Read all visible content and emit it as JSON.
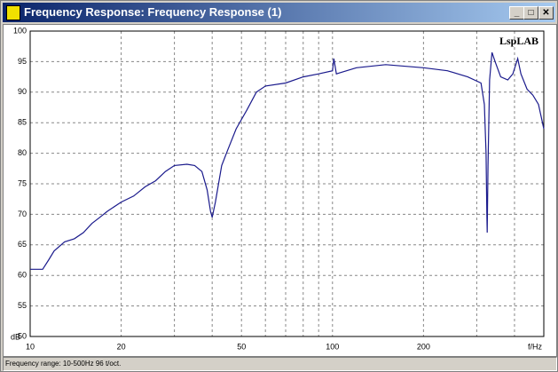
{
  "window": {
    "title": "Frequency Response: Frequency Response (1)",
    "status": "Frequency range: 10-500Hz  96 t/oct."
  },
  "chart_data": {
    "type": "line",
    "watermark": "LspLAB",
    "x_label": "f/Hz",
    "y_label": "dB",
    "log_x": true,
    "grid": true,
    "xlim": [
      10,
      500
    ],
    "ylim": [
      50,
      100
    ],
    "xticks": [
      10,
      20,
      50,
      100,
      200
    ],
    "xgrid": [
      30,
      40,
      60,
      70,
      80,
      90,
      300,
      400
    ],
    "yticks": [
      50,
      55,
      60,
      65,
      70,
      75,
      80,
      85,
      90,
      95,
      100
    ],
    "x": [
      10,
      11,
      11.5,
      12,
      13,
      14,
      15,
      16,
      17,
      18,
      20,
      22,
      24,
      26,
      28,
      30,
      33,
      35,
      37,
      38.5,
      39.5,
      40,
      41,
      43,
      45,
      48,
      52,
      56,
      60,
      70,
      80,
      90,
      100,
      101,
      103,
      120,
      150,
      200,
      240,
      280,
      310,
      318,
      322,
      324,
      325,
      327,
      331,
      337,
      345,
      360,
      380,
      395,
      410,
      420,
      440,
      460,
      480,
      500
    ],
    "series": [
      {
        "name": "Frequency Response (1)",
        "color": "#1a1a8c",
        "values": [
          61,
          61,
          62.5,
          64,
          65.5,
          66,
          67,
          68.5,
          69.5,
          70.5,
          72,
          73,
          74.5,
          75.5,
          77,
          78,
          78.2,
          78,
          77,
          74,
          70.5,
          69.5,
          72,
          78,
          80.5,
          84,
          87,
          90,
          91,
          91.5,
          92.5,
          93,
          93.5,
          95.5,
          93,
          94,
          94.5,
          94,
          93.5,
          92.5,
          91.5,
          88,
          80,
          70,
          67,
          78,
          92,
          96.5,
          95,
          92.5,
          92,
          93,
          95.5,
          93,
          90.5,
          89.5,
          88,
          84
        ]
      }
    ]
  }
}
